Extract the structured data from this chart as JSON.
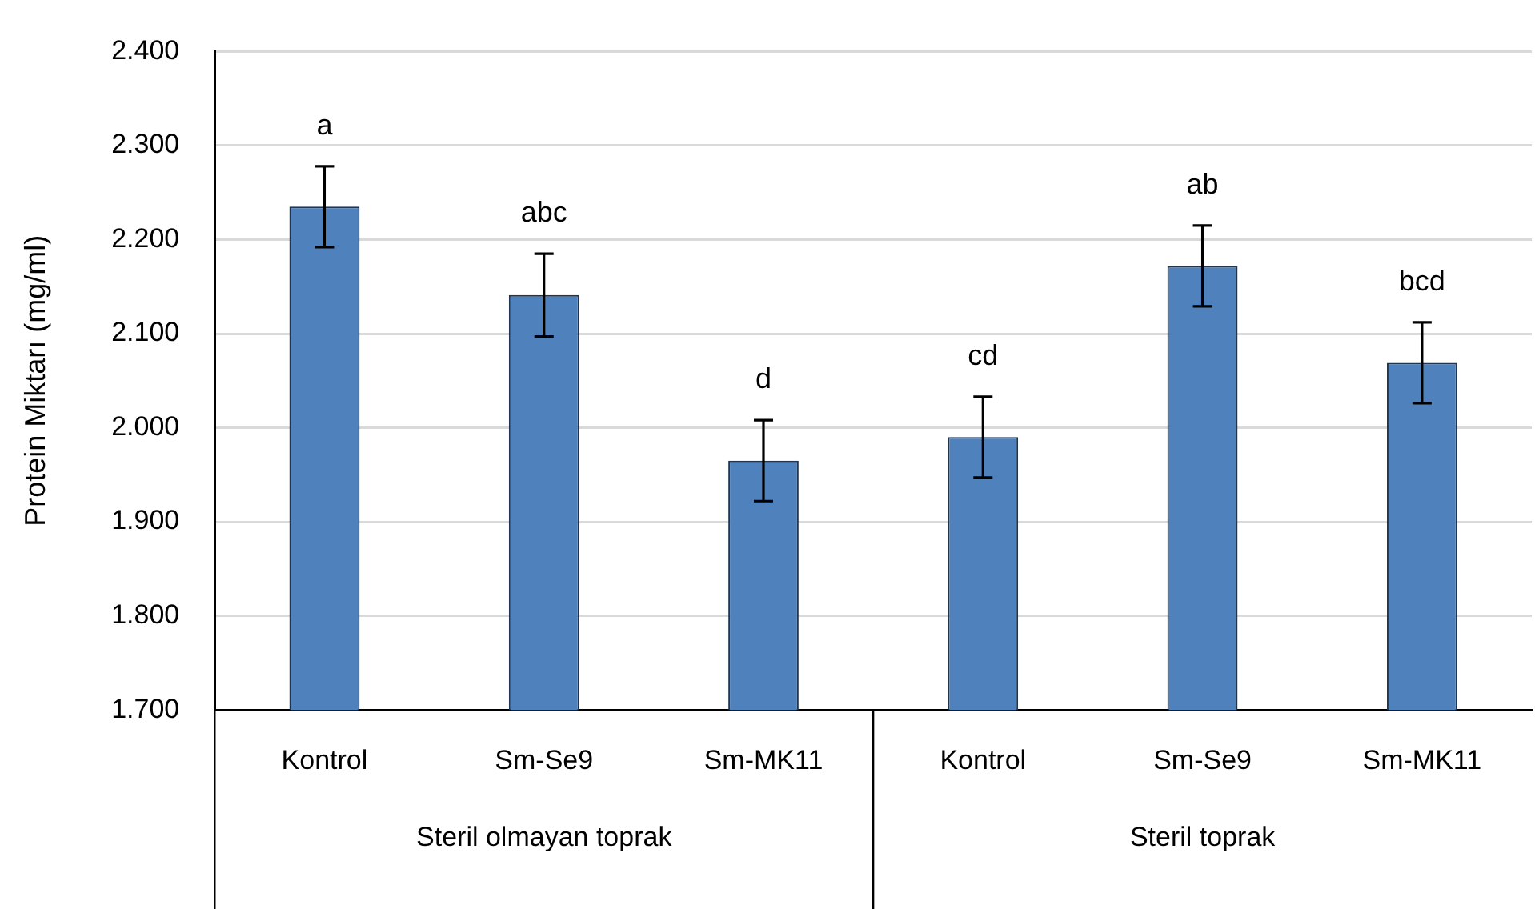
{
  "chart_data": {
    "type": "bar",
    "ylabel": "Protein Miktarı (mg/ml)",
    "categories": [
      "Kontrol",
      "Sm-Se9",
      "Sm-MK11",
      "Kontrol",
      "Sm-Se9",
      "Sm-MK11"
    ],
    "values": [
      2.235,
      2.141,
      1.965,
      1.99,
      2.172,
      2.069
    ],
    "errors": [
      0.043,
      0.044,
      0.043,
      0.043,
      0.043,
      0.043
    ],
    "value_labels": [
      "a",
      "abc",
      "d",
      "cd",
      "ab",
      "bcd"
    ],
    "color": "#4f81bd",
    "ylim": [
      1.7,
      2.4
    ],
    "yticks": [
      {
        "value": 1.7,
        "label": "1.700"
      },
      {
        "value": 1.8,
        "label": "1.800"
      },
      {
        "value": 1.9,
        "label": "1.900"
      },
      {
        "value": 2.0,
        "label": "2.000"
      },
      {
        "value": 2.1,
        "label": "2.100"
      },
      {
        "value": 2.2,
        "label": "2.200"
      },
      {
        "value": 2.3,
        "label": "2.300"
      },
      {
        "value": 2.4,
        "label": "2.400"
      }
    ],
    "grid": "y",
    "annotations": [
      "Steril olmayan toprak",
      "Steril toprak"
    ]
  }
}
